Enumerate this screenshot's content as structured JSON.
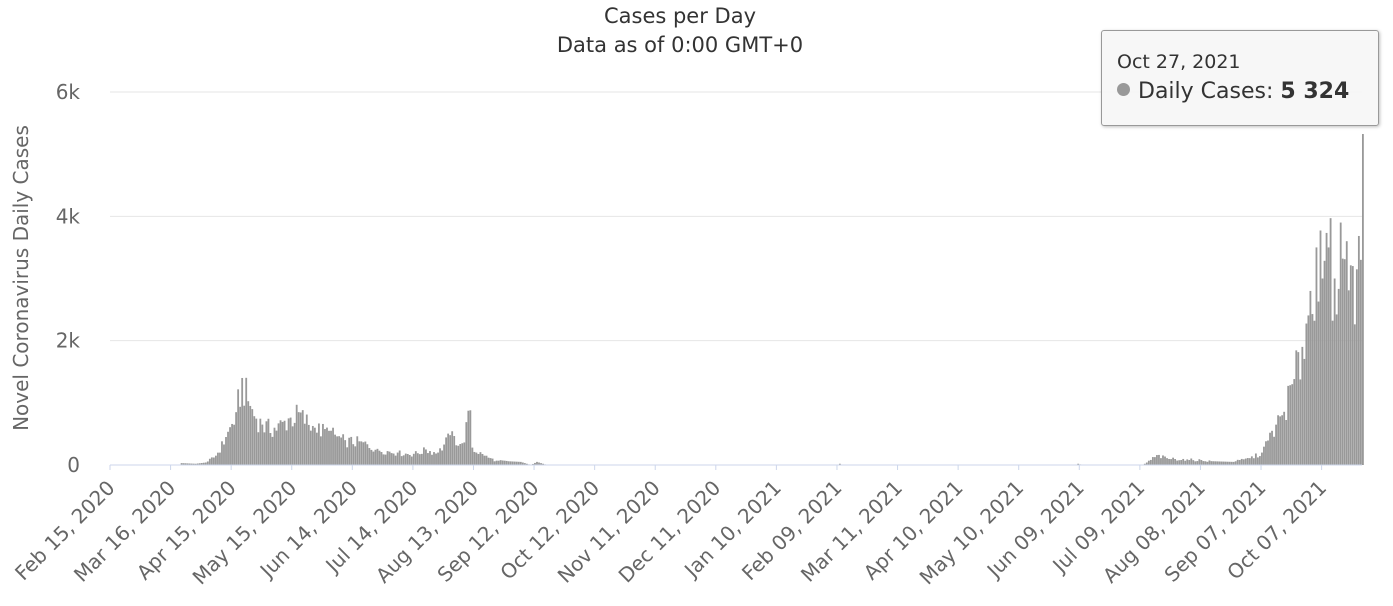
{
  "chart_data": {
    "type": "bar",
    "title": "Cases per Day",
    "subtitle": "Data as of 0:00 GMT+0",
    "ylabel": "Novel Coronavirus Daily Cases",
    "xlabel": "",
    "x_start": "2020-02-15",
    "x_end": "2021-10-27",
    "ylim": [
      0,
      6600
    ],
    "yticks": [
      {
        "value": 0,
        "label": "0"
      },
      {
        "value": 2000,
        "label": "2k"
      },
      {
        "value": 4000,
        "label": "4k"
      },
      {
        "value": 6000,
        "label": "6k"
      }
    ],
    "xtick_labels": [
      {
        "date": "2020-02-15",
        "label": "Feb 15, 2020"
      },
      {
        "date": "2020-03-16",
        "label": "Mar 16, 2020"
      },
      {
        "date": "2020-04-15",
        "label": "Apr 15, 2020"
      },
      {
        "date": "2020-05-15",
        "label": "May 15, 2020"
      },
      {
        "date": "2020-06-14",
        "label": "Jun 14, 2020"
      },
      {
        "date": "2020-07-14",
        "label": "Jul 14, 2020"
      },
      {
        "date": "2020-08-13",
        "label": "Aug 13, 2020"
      },
      {
        "date": "2020-09-12",
        "label": "Sep 12, 2020"
      },
      {
        "date": "2020-10-12",
        "label": "Oct 12, 2020"
      },
      {
        "date": "2020-11-11",
        "label": "Nov 11, 2020"
      },
      {
        "date": "2020-12-11",
        "label": "Dec 11, 2020"
      },
      {
        "date": "2021-01-10",
        "label": "Jan 10, 2021"
      },
      {
        "date": "2021-02-09",
        "label": "Feb 09, 2021"
      },
      {
        "date": "2021-03-11",
        "label": "Mar 11, 2021"
      },
      {
        "date": "2021-04-10",
        "label": "Apr 10, 2021"
      },
      {
        "date": "2021-05-10",
        "label": "May 10, 2021"
      },
      {
        "date": "2021-06-09",
        "label": "Jun 09, 2021"
      },
      {
        "date": "2021-07-09",
        "label": "Jul 09, 2021"
      },
      {
        "date": "2021-08-08",
        "label": "Aug 08, 2021"
      },
      {
        "date": "2021-09-07",
        "label": "Sep 07, 2021"
      },
      {
        "date": "2021-10-07",
        "label": "Oct 07, 2021"
      }
    ],
    "key_points": [
      {
        "date": "2020-02-15",
        "value": 0
      },
      {
        "date": "2020-03-20",
        "value": 0
      },
      {
        "date": "2020-03-21",
        "value": 30
      },
      {
        "date": "2020-03-28",
        "value": 20
      },
      {
        "date": "2020-04-02",
        "value": 40
      },
      {
        "date": "2020-04-07",
        "value": 150
      },
      {
        "date": "2020-04-12",
        "value": 450
      },
      {
        "date": "2020-04-17",
        "value": 850
      },
      {
        "date": "2020-04-20",
        "value": 1400
      },
      {
        "date": "2020-04-24",
        "value": 950
      },
      {
        "date": "2020-04-30",
        "value": 650
      },
      {
        "date": "2020-05-06",
        "value": 600
      },
      {
        "date": "2020-05-13",
        "value": 750
      },
      {
        "date": "2020-05-18",
        "value": 850
      },
      {
        "date": "2020-05-26",
        "value": 600
      },
      {
        "date": "2020-06-02",
        "value": 550
      },
      {
        "date": "2020-06-10",
        "value": 400
      },
      {
        "date": "2020-06-18",
        "value": 380
      },
      {
        "date": "2020-06-26",
        "value": 260
      },
      {
        "date": "2020-07-06",
        "value": 200
      },
      {
        "date": "2020-07-14",
        "value": 180
      },
      {
        "date": "2020-07-20",
        "value": 250
      },
      {
        "date": "2020-07-26",
        "value": 200
      },
      {
        "date": "2020-08-01",
        "value": 480
      },
      {
        "date": "2020-08-07",
        "value": 350
      },
      {
        "date": "2020-08-11",
        "value": 880
      },
      {
        "date": "2020-08-12",
        "value": 280
      },
      {
        "date": "2020-08-18",
        "value": 150
      },
      {
        "date": "2020-08-24",
        "value": 70
      },
      {
        "date": "2020-09-05",
        "value": 50
      },
      {
        "date": "2020-09-10",
        "value": 0
      },
      {
        "date": "2020-09-13",
        "value": 50
      },
      {
        "date": "2020-09-18",
        "value": 0
      },
      {
        "date": "2021-02-09",
        "value": 0
      },
      {
        "date": "2021-02-10",
        "value": 20
      },
      {
        "date": "2021-02-11",
        "value": 0
      },
      {
        "date": "2021-06-07",
        "value": 0
      },
      {
        "date": "2021-06-08",
        "value": 20
      },
      {
        "date": "2021-06-10",
        "value": 0
      },
      {
        "date": "2021-07-10",
        "value": 0
      },
      {
        "date": "2021-07-12",
        "value": 40
      },
      {
        "date": "2021-07-17",
        "value": 160
      },
      {
        "date": "2021-07-22",
        "value": 110
      },
      {
        "date": "2021-08-01",
        "value": 90
      },
      {
        "date": "2021-08-08",
        "value": 80
      },
      {
        "date": "2021-08-14",
        "value": 60
      },
      {
        "date": "2021-08-24",
        "value": 50
      },
      {
        "date": "2021-08-27",
        "value": 80
      },
      {
        "date": "2021-09-01",
        "value": 110
      },
      {
        "date": "2021-09-07",
        "value": 200
      },
      {
        "date": "2021-09-12",
        "value": 550
      },
      {
        "date": "2021-09-17",
        "value": 800
      },
      {
        "date": "2021-09-22",
        "value": 1300
      },
      {
        "date": "2021-09-27",
        "value": 1900
      },
      {
        "date": "2021-10-01",
        "value": 2800
      },
      {
        "date": "2021-10-04",
        "value": 3500
      },
      {
        "date": "2021-10-07",
        "value": 3000
      },
      {
        "date": "2021-10-10",
        "value": 3500
      },
      {
        "date": "2021-10-13",
        "value": 3000
      },
      {
        "date": "2021-10-16",
        "value": 3900
      },
      {
        "date": "2021-10-19",
        "value": 3600
      },
      {
        "date": "2021-10-22",
        "value": 3200
      },
      {
        "date": "2021-10-26",
        "value": 3300
      },
      {
        "date": "2021-10-27",
        "value": 5324
      }
    ],
    "bar_color": "#999999",
    "grid": true,
    "legend": "none"
  },
  "tooltip": {
    "date": "Oct 27, 2021",
    "series_label": "Daily Cases:",
    "value": "5 324",
    "dot_color": "#999999"
  }
}
